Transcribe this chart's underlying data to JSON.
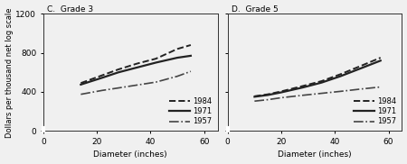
{
  "panel_C": {
    "title": "C.  Grade 3",
    "lines": {
      "1984": {
        "x": [
          14,
          18,
          22,
          28,
          35,
          42,
          50,
          55
        ],
        "y": [
          490,
          530,
          570,
          630,
          690,
          740,
          840,
          880
        ],
        "style": "--",
        "color": "#222222",
        "lw": 1.4
      },
      "1971": {
        "x": [
          14,
          18,
          22,
          28,
          35,
          42,
          50,
          55
        ],
        "y": [
          475,
          510,
          545,
          600,
          650,
          700,
          750,
          770
        ],
        "style": "-",
        "color": "#222222",
        "lw": 1.6
      },
      "1957": {
        "x": [
          14,
          18,
          22,
          28,
          35,
          42,
          50,
          55
        ],
        "y": [
          375,
          395,
          415,
          440,
          470,
          500,
          560,
          610
        ],
        "style": "-.",
        "color": "#444444",
        "lw": 1.2
      }
    }
  },
  "panel_D": {
    "title": "D.  Grade 5",
    "lines": {
      "1984": {
        "x": [
          10,
          15,
          20,
          28,
          35,
          42,
          50,
          57
        ],
        "y": [
          355,
          375,
          405,
          460,
          510,
          580,
          670,
          750
        ],
        "style": "--",
        "color": "#222222",
        "lw": 1.4
      },
      "1971": {
        "x": [
          10,
          15,
          20,
          28,
          35,
          42,
          50,
          57
        ],
        "y": [
          350,
          368,
          395,
          445,
          495,
          560,
          645,
          720
        ],
        "style": "-",
        "color": "#222222",
        "lw": 1.6
      },
      "1957": {
        "x": [
          10,
          15,
          20,
          28,
          35,
          42,
          50,
          57
        ],
        "y": [
          305,
          320,
          340,
          365,
          385,
          405,
          430,
          450
        ],
        "style": "-.",
        "color": "#444444",
        "lw": 1.2
      }
    }
  },
  "ylabel": "Dollars per thousand net log scale",
  "xlabel": "Diameter (inches)",
  "ylim": [
    0,
    1200
  ],
  "xlim": [
    0,
    65
  ],
  "yticks": [
    0,
    400,
    800,
    1200
  ],
  "xticks": [
    0,
    20,
    40,
    60
  ],
  "legend_years": [
    "1984",
    "1971",
    "1957"
  ],
  "bg_color": "#f0f0f0",
  "ax_bg_color": "#f0f0f0",
  "fontsize": 6.5
}
